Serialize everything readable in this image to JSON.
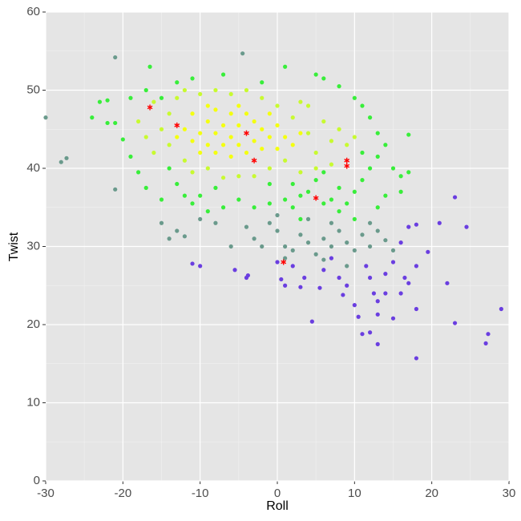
{
  "chart_data": {
    "type": "scatter",
    "xlabel": "Roll",
    "ylabel": "Twist",
    "xlim": [
      -30,
      30
    ],
    "ylim": [
      0,
      60
    ],
    "xticks": [
      -30,
      -20,
      -10,
      0,
      10,
      20,
      30
    ],
    "yticks": [
      0,
      10,
      20,
      30,
      40,
      50,
      60
    ],
    "xminor": [
      -25,
      -15,
      -5,
      5,
      15,
      25
    ],
    "yminor": [
      5,
      15,
      25,
      35,
      45,
      55
    ],
    "grid": true,
    "series": [
      {
        "color": "#6a3ee0",
        "x": [
          0,
          0.5,
          1,
          2,
          3,
          4.5,
          5.5,
          6,
          7,
          8,
          8.5,
          9,
          10,
          10.5,
          11,
          12,
          12.5,
          13,
          13,
          13,
          14,
          15,
          15,
          16,
          16.5,
          17,
          18,
          18,
          18,
          19.5,
          22,
          23,
          27,
          27.3,
          29,
          -4,
          -3.8,
          -5.5,
          -11,
          -10,
          3.5,
          12,
          14,
          11.5,
          16,
          17,
          21,
          23,
          24.5,
          18
        ],
        "values": [
          28,
          25.8,
          25,
          27.5,
          24.8,
          20.4,
          24.7,
          27,
          28.5,
          26,
          23.8,
          25,
          22.5,
          21,
          18.8,
          19,
          24,
          23,
          21.3,
          17.5,
          26.5,
          20.8,
          28,
          30.5,
          26,
          25.3,
          22,
          15.7,
          27.5,
          29.3,
          25.3,
          20.2,
          17.6,
          18.8,
          22,
          26,
          26.3,
          27,
          27.8,
          27.5,
          26,
          26,
          24,
          27.5,
          24,
          32.5,
          33,
          36.3,
          32.5,
          32.8
        ]
      },
      {
        "color": "#6a9a8c",
        "x": [
          -30,
          -28,
          -27.3,
          -21,
          -4.5,
          -21,
          -14,
          -13,
          -12,
          -15,
          -10,
          -6,
          -3,
          -2,
          0,
          1,
          2,
          3,
          4,
          5,
          6,
          7,
          8,
          9,
          10,
          11,
          12,
          13,
          14,
          15,
          7,
          -1,
          0,
          4,
          -8,
          1,
          6,
          9,
          -4,
          12
        ],
        "values": [
          46.5,
          40.8,
          41.3,
          37.3,
          54.7,
          54.2,
          31,
          32,
          31.3,
          33,
          33.5,
          30,
          31,
          30,
          32,
          30,
          29.5,
          31.5,
          30.5,
          29,
          31,
          30,
          32,
          30.5,
          29.5,
          31.5,
          30,
          32,
          30.8,
          29.5,
          33,
          33,
          34,
          33.5,
          33,
          28.5,
          28.3,
          27.5,
          32.5,
          33
        ]
      },
      {
        "color": "#38ee3a",
        "x": [
          -24,
          -23,
          -22,
          -21,
          -20,
          -19,
          -18,
          -17,
          -16.5,
          -15,
          -14,
          -13,
          -12,
          -11,
          -9,
          -7,
          -5,
          -3,
          -1,
          1,
          2,
          3,
          4,
          6,
          7,
          8,
          9,
          10,
          11,
          12,
          13,
          14,
          15,
          16,
          17,
          17,
          12,
          11,
          10,
          8,
          6,
          5,
          1,
          -2,
          -7,
          -11,
          -13,
          -17,
          -19,
          -15,
          -8,
          -1,
          2,
          5,
          8,
          10,
          13,
          14,
          16,
          11,
          13,
          -22,
          3,
          -10,
          6
        ],
        "values": [
          46.5,
          48.5,
          45.8,
          45.8,
          43.7,
          41.5,
          39.5,
          37.5,
          53,
          49,
          40,
          38,
          36.5,
          35.5,
          34.5,
          35,
          36,
          35,
          35.5,
          36,
          35,
          36.5,
          37,
          35.5,
          36,
          34.5,
          35.5,
          37,
          38.5,
          40,
          41.5,
          43,
          40,
          39,
          39.5,
          44.3,
          46.5,
          48,
          49,
          50.5,
          51.5,
          52,
          53,
          51,
          52,
          51.5,
          51,
          50,
          49,
          36,
          37.5,
          38,
          38,
          38.5,
          37.5,
          33.5,
          35,
          36.5,
          37,
          42,
          44.5,
          48.7,
          33.5,
          36.5,
          39.5
        ]
      },
      {
        "color": "#c8fa30",
        "x": [
          -18,
          -17,
          -16,
          -14,
          -14,
          -13,
          -12,
          -11,
          -10,
          -9,
          -8,
          -6,
          -5,
          -4,
          -2,
          -1,
          0,
          1,
          2,
          3,
          4,
          5,
          6,
          7,
          8,
          7,
          4,
          -3,
          -7,
          -15,
          -16,
          -12,
          9,
          10,
          5,
          3
        ],
        "values": [
          46,
          44,
          42,
          47,
          43,
          49,
          41,
          39.5,
          49.5,
          40,
          50,
          49.5,
          39,
          50,
          49,
          40,
          48,
          41,
          46.5,
          39.5,
          44.5,
          42,
          46,
          43.5,
          45,
          40.5,
          48,
          39,
          38.8,
          45,
          48.5,
          50,
          43,
          44,
          40,
          48.5
        ]
      },
      {
        "color": "#f4ff10",
        "x": [
          -12,
          -11,
          -11,
          -10,
          -10,
          -9,
          -9,
          -8,
          -8,
          -8,
          -7,
          -7,
          -6,
          -6,
          -6,
          -5,
          -5,
          -4,
          -4,
          -3,
          -3,
          -2,
          -2,
          -1,
          -1,
          0,
          0,
          1,
          2,
          -9,
          -5,
          -13,
          3
        ],
        "values": [
          45,
          43.5,
          47,
          44.5,
          42,
          46,
          43,
          47.5,
          44.5,
          42,
          45.5,
          43,
          47,
          44,
          41.5,
          45.5,
          43,
          47,
          42,
          46,
          43.5,
          45,
          42.5,
          47,
          44,
          45.5,
          42.5,
          44,
          43,
          48,
          48,
          44,
          44.5
        ]
      },
      {
        "color": "#ff0000",
        "marker": "asterisk",
        "x": [
          -16.5,
          -13,
          -4,
          -3,
          5,
          9,
          9,
          0.8
        ],
        "values": [
          47.8,
          45.5,
          44.5,
          41,
          36.2,
          41,
          40.3,
          28
        ]
      }
    ]
  }
}
